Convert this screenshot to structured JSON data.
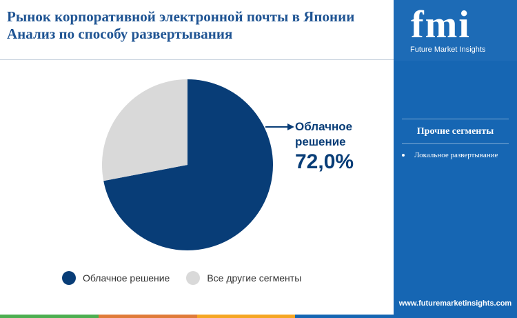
{
  "header": {
    "title_line1": "Рынок корпоративной электронной почты в Японии",
    "title_line2": "Анализ по способу развертывания"
  },
  "chart_data": {
    "type": "pie",
    "title": "Рынок корпоративной электронной почты в Японии Анализ по способу развертывания",
    "slices": [
      {
        "name": "Облачное решение",
        "value": 72.0,
        "color": "#083d77"
      },
      {
        "name": "Все другие сегменты",
        "value": 28.0,
        "color": "#d9d9d9"
      }
    ],
    "callout": {
      "label": "Облачное решение",
      "value_text": "72,0%"
    },
    "legend_position": "bottom"
  },
  "legend": {
    "items": [
      {
        "label": "Облачное решение",
        "color": "#083d77"
      },
      {
        "label": "Все другие сегменты",
        "color": "#d9d9d9"
      }
    ]
  },
  "sidebar": {
    "logo_mark": "fmi",
    "logo_text": "Future Market Insights",
    "heading": "Прочие сегменты",
    "items": [
      "Локальное развертывание"
    ],
    "website": "www.futuremarketinsights.com",
    "background_color": "#1666b3"
  },
  "bottom_bar_colors": [
    "#4caf50",
    "#e07b39",
    "#f5a623",
    "#1666b3"
  ]
}
